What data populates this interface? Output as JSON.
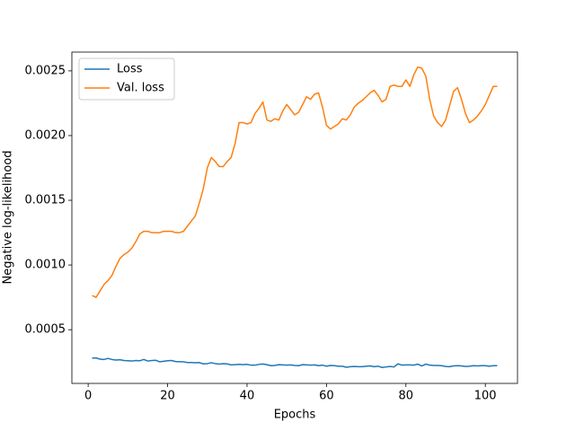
{
  "chart_data": {
    "type": "line",
    "x_label": "Epochs",
    "y_label": "Negative log-likelihood",
    "x": [
      1,
      2,
      3,
      4,
      5,
      6,
      7,
      8,
      9,
      10,
      11,
      12,
      13,
      14,
      15,
      16,
      17,
      18,
      19,
      20,
      21,
      22,
      23,
      24,
      25,
      26,
      27,
      28,
      29,
      30,
      31,
      32,
      33,
      34,
      35,
      36,
      37,
      38,
      39,
      40,
      41,
      42,
      43,
      44,
      45,
      46,
      47,
      48,
      49,
      50,
      51,
      52,
      53,
      54,
      55,
      56,
      57,
      58,
      59,
      60,
      61,
      62,
      63,
      64,
      65,
      66,
      67,
      68,
      69,
      70,
      71,
      72,
      73,
      74,
      75,
      76,
      77,
      78,
      79,
      80,
      81,
      82,
      83,
      84,
      85,
      86,
      87,
      88,
      89,
      90,
      91,
      92,
      93,
      94,
      95,
      96,
      97,
      98,
      99,
      100,
      101,
      102,
      103
    ],
    "series": [
      {
        "name": "Loss",
        "color": "#1f77b4",
        "values": [
          0.00028,
          0.000282,
          0.000272,
          0.00027,
          0.000278,
          0.00027,
          0.000265,
          0.000268,
          0.000262,
          0.00026,
          0.000258,
          0.000262,
          0.00026,
          0.00027,
          0.000258,
          0.000262,
          0.000264,
          0.000252,
          0.000256,
          0.00026,
          0.000262,
          0.000254,
          0.000252,
          0.000252,
          0.000246,
          0.000246,
          0.000245,
          0.000246,
          0.000236,
          0.000238,
          0.000245,
          0.000238,
          0.000234,
          0.000238,
          0.000236,
          0.000228,
          0.00023,
          0.000232,
          0.00023,
          0.000232,
          0.000226,
          0.000226,
          0.000232,
          0.000235,
          0.00023,
          0.000222,
          0.000224,
          0.00023,
          0.000228,
          0.000226,
          0.000228,
          0.000224,
          0.000222,
          0.00023,
          0.000228,
          0.000226,
          0.000228,
          0.000222,
          0.000226,
          0.000218,
          0.000224,
          0.000222,
          0.000218,
          0.000218,
          0.00021,
          0.000214,
          0.000216,
          0.000214,
          0.000214,
          0.000218,
          0.00022,
          0.000214,
          0.000218,
          0.000208,
          0.000212,
          0.000216,
          0.000212,
          0.000236,
          0.000226,
          0.000228,
          0.000228,
          0.000226,
          0.000234,
          0.00022,
          0.000234,
          0.000226,
          0.000224,
          0.000224,
          0.000222,
          0.000216,
          0.000214,
          0.00022,
          0.000222,
          0.00022,
          0.000216,
          0.000218,
          0.000222,
          0.00022,
          0.000222,
          0.000222,
          0.000218,
          0.000222,
          0.000222
        ]
      },
      {
        "name": "Val. loss",
        "color": "#ff7f0e",
        "values": [
          0.000764,
          0.00075,
          0.0008,
          0.00085,
          0.00088,
          0.00092,
          0.00099,
          0.00105,
          0.00108,
          0.0011,
          0.00113,
          0.00118,
          0.00124,
          0.00126,
          0.00126,
          0.00125,
          0.00125,
          0.00125,
          0.00126,
          0.00126,
          0.00126,
          0.00125,
          0.00125,
          0.00126,
          0.0013,
          0.00134,
          0.00138,
          0.00148,
          0.00159,
          0.00175,
          0.00183,
          0.0018,
          0.00176,
          0.00176,
          0.0018,
          0.00183,
          0.00194,
          0.0021,
          0.0021,
          0.00209,
          0.0021,
          0.00217,
          0.00221,
          0.00226,
          0.00212,
          0.00211,
          0.00213,
          0.00212,
          0.00219,
          0.00224,
          0.0022,
          0.00216,
          0.00218,
          0.00224,
          0.0023,
          0.00228,
          0.00232,
          0.00233,
          0.00222,
          0.00208,
          0.00205,
          0.00207,
          0.00209,
          0.00213,
          0.00212,
          0.00216,
          0.00222,
          0.00225,
          0.00227,
          0.0023,
          0.00233,
          0.00235,
          0.00231,
          0.00226,
          0.00228,
          0.00238,
          0.00239,
          0.00238,
          0.00238,
          0.00243,
          0.00238,
          0.00247,
          0.00253,
          0.00252,
          0.00246,
          0.00228,
          0.00215,
          0.0021,
          0.00207,
          0.00212,
          0.00223,
          0.00234,
          0.00237,
          0.00228,
          0.00217,
          0.0021,
          0.00212,
          0.00215,
          0.00219,
          0.00224,
          0.00231,
          0.00238,
          0.00238
        ]
      }
    ],
    "xlim": [
      -4.1,
      108.1
    ],
    "xticks": [
      0,
      20,
      40,
      60,
      80,
      100
    ],
    "ylim": [
      8.5e-05,
      0.002645
    ],
    "yticks": [
      0.0005,
      {
        "value": 0.001,
        "label": "0.0010"
      },
      0.0015,
      {
        "value": 0.002,
        "label": "0.0020"
      },
      0.0025
    ],
    "legend": "upper left",
    "grid": false
  }
}
